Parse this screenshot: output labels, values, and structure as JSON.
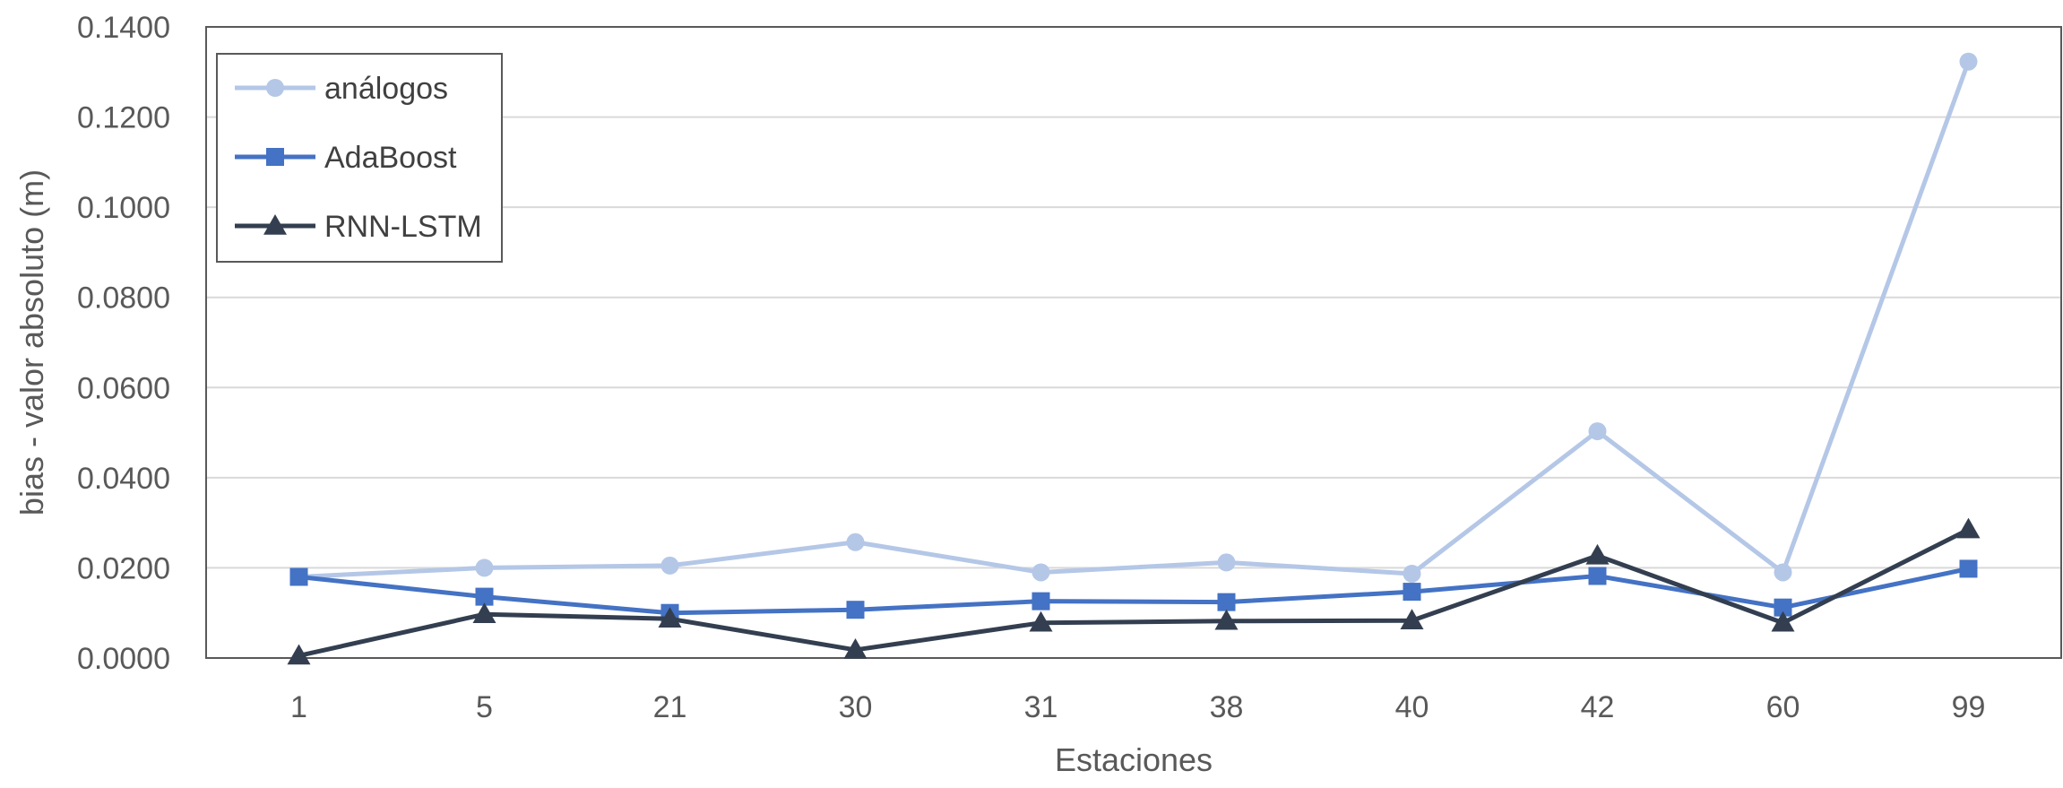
{
  "chart_data": {
    "type": "line",
    "title": "",
    "xlabel": "Estaciones",
    "ylabel": "bias - valor absoluto (m)",
    "categories": [
      "1",
      "5",
      "21",
      "30",
      "31",
      "38",
      "40",
      "42",
      "60",
      "99"
    ],
    "ylim": [
      0,
      0.14
    ],
    "yticks": [
      "0.0000",
      "0.0200",
      "0.0400",
      "0.0600",
      "0.0800",
      "0.1000",
      "0.1200",
      "0.1400"
    ],
    "ytick_values": [
      0,
      0.02,
      0.04,
      0.06,
      0.08,
      0.1,
      0.12,
      0.14
    ],
    "grid": "horizontal",
    "legend_position": "top-left",
    "series": [
      {
        "name": "análogos",
        "color": "#b4c7e7",
        "marker": "circle",
        "values": [
          0.018,
          0.02,
          0.0205,
          0.0257,
          0.019,
          0.0212,
          0.0187,
          0.0503,
          0.019,
          0.1323
        ]
      },
      {
        "name": "AdaBoost",
        "color": "#4472c4",
        "marker": "square",
        "values": [
          0.018,
          0.0136,
          0.01,
          0.0107,
          0.0126,
          0.0124,
          0.0147,
          0.0182,
          0.0112,
          0.0198
        ]
      },
      {
        "name": "RNN-LSTM",
        "color": "#333f50",
        "marker": "triangle",
        "values": [
          0.0005,
          0.0097,
          0.0087,
          0.0018,
          0.0078,
          0.0082,
          0.0083,
          0.0227,
          0.0078,
          0.0285
        ]
      }
    ]
  }
}
